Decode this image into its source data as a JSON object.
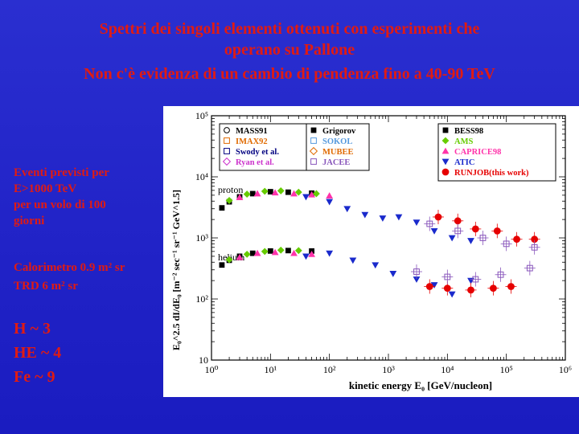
{
  "slide": {
    "title_lines": [
      "Spettri dei singoli elementi ottenuti con esperimenti che",
      "operano su Pallone",
      "Non c'è evidenza di un cambio di pendenza fino a 40-90 TeV"
    ],
    "notes": {
      "expected_events": [
        "Eventi previsti per",
        "E>1000 TeV",
        "per un volo di 100",
        "giorni"
      ],
      "calorimeter": "Calorimetro 0.9 m² sr",
      "trd": "TRD 6 m² sr",
      "counts": [
        "H ~ 3",
        "HE ~ 4",
        "Fe ~ 9"
      ]
    }
  },
  "chart_data": {
    "type": "scatter",
    "xscale": "log",
    "yscale": "log",
    "xlim": [
      1,
      1000000
    ],
    "ylim": [
      10,
      100000
    ],
    "xlabel": "kinetic energy E₀ [GeV/nucleon]",
    "ylabel": "E₀^2.5 dI/dE₀ [m⁻² sec⁻¹ sr⁻¹ GeV^1.5]",
    "x_ticks": [
      "10⁰",
      "10¹",
      "10²",
      "10³",
      "10⁴",
      "10⁵",
      "10⁶"
    ],
    "y_ticks": [
      "10",
      "10²",
      "10³",
      "10⁴",
      "10⁵"
    ],
    "annotations": [
      "proton",
      "helium"
    ],
    "legend_left": [
      {
        "name": "MASS91",
        "color": "#000000"
      },
      {
        "name": "IMAX92",
        "color": "#e06a00"
      },
      {
        "name": "Swody et al.",
        "color": "#000080"
      },
      {
        "name": "Ryan et al.",
        "color": "#cc33cc"
      }
    ],
    "legend_mid": [
      {
        "name": "Grigorov",
        "color": "#000000"
      },
      {
        "name": "SOKOL",
        "color": "#5599dd"
      },
      {
        "name": "MUBEE",
        "color": "#e06a00"
      },
      {
        "name": "JACEE",
        "color": "#8855bb"
      }
    ],
    "legend_right": [
      {
        "name": "BESS98",
        "color": "#000000"
      },
      {
        "name": "AMS",
        "color": "#66cc00"
      },
      {
        "name": "CAPRICE98",
        "color": "#ff33aa"
      },
      {
        "name": "ATIC",
        "color": "#1a2acc"
      },
      {
        "name": "RUNJOB(this work)",
        "color": "#e60000"
      }
    ],
    "series": [
      {
        "name": "BESS98",
        "color": "#000000",
        "proton": [
          [
            1.5,
            3100
          ],
          [
            2,
            3900
          ],
          [
            3,
            4700
          ],
          [
            5,
            5300
          ],
          [
            10,
            5700
          ],
          [
            20,
            5600
          ],
          [
            50,
            5400
          ]
        ],
        "helium": [
          [
            1.5,
            360
          ],
          [
            2,
            430
          ],
          [
            3,
            500
          ],
          [
            5,
            560
          ],
          [
            10,
            610
          ],
          [
            20,
            620
          ],
          [
            50,
            610
          ]
        ]
      },
      {
        "name": "AMS",
        "color": "#66cc00",
        "proton": [
          [
            2,
            4100
          ],
          [
            4,
            5200
          ],
          [
            8,
            5800
          ],
          [
            15,
            5900
          ],
          [
            30,
            5600
          ],
          [
            60,
            5300
          ]
        ],
        "helium": [
          [
            2,
            440
          ],
          [
            4,
            540
          ],
          [
            8,
            600
          ],
          [
            15,
            630
          ],
          [
            30,
            620
          ]
        ]
      },
      {
        "name": "CAPRICE98",
        "color": "#ff33aa",
        "proton": [
          [
            3,
            4600
          ],
          [
            6,
            5300
          ],
          [
            12,
            5500
          ],
          [
            25,
            5300
          ],
          [
            50,
            5100
          ],
          [
            100,
            4900
          ]
        ],
        "helium": [
          [
            3,
            480
          ],
          [
            6,
            560
          ],
          [
            12,
            580
          ],
          [
            25,
            560
          ],
          [
            50,
            540
          ]
        ]
      },
      {
        "name": "ATIC",
        "color": "#1a2acc",
        "proton": [
          [
            40,
            4700
          ],
          [
            100,
            3900
          ],
          [
            200,
            3000
          ],
          [
            400,
            2400
          ],
          [
            800,
            2100
          ],
          [
            1500,
            2200
          ],
          [
            3000,
            1800
          ],
          [
            6000,
            1300
          ],
          [
            12000,
            1000
          ],
          [
            25000,
            900
          ]
        ],
        "helium": [
          [
            40,
            500
          ],
          [
            100,
            560
          ],
          [
            250,
            430
          ],
          [
            600,
            360
          ],
          [
            1200,
            260
          ],
          [
            3000,
            210
          ],
          [
            6000,
            170
          ],
          [
            12000,
            120
          ],
          [
            25000,
            200
          ]
        ]
      },
      {
        "name": "RUNJOB(this work)",
        "color": "#e60000",
        "proton": [
          [
            7000,
            2200
          ],
          [
            15000,
            1900
          ],
          [
            30000,
            1400
          ],
          [
            70000,
            1300
          ],
          [
            150000,
            950
          ],
          [
            300000,
            950
          ]
        ],
        "helium": [
          [
            5000,
            160
          ],
          [
            10000,
            150
          ],
          [
            25000,
            140
          ],
          [
            60000,
            150
          ],
          [
            120000,
            160
          ]
        ]
      },
      {
        "name": "JACEE",
        "color": "#8855bb",
        "proton": [
          [
            5000,
            1700
          ],
          [
            15000,
            1300
          ],
          [
            40000,
            1000
          ],
          [
            100000,
            800
          ],
          [
            300000,
            700
          ]
        ],
        "helium": [
          [
            3000,
            280
          ],
          [
            10000,
            230
          ],
          [
            30000,
            210
          ],
          [
            80000,
            250
          ],
          [
            250000,
            320
          ]
        ]
      }
    ]
  }
}
